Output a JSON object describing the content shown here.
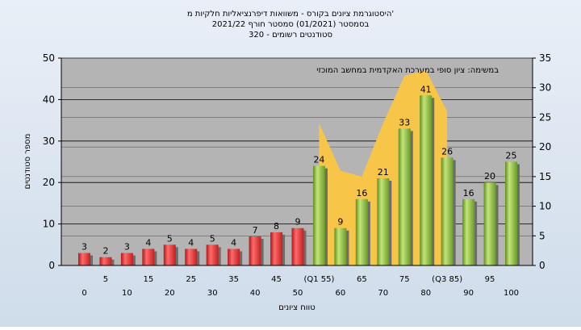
{
  "chart_data": {
    "type": "bar",
    "title_lines": [
      "היסטוגרמת ציונים בקורס - משוואות דיפרנציאליות חלקיות מ'",
      "בסמסטר  (01/2021)  סמסטר חורף  2021/22",
      "סטודנטים רשומים - 320"
    ],
    "annotation": "במשימה: ציון סופי במערכת האקדמית במחשב המוכזי",
    "xlabel": "טווח ציונים",
    "ylabel": "מספר סטודנטים",
    "ylim": [
      0,
      50
    ],
    "yticks": [
      "0",
      "10",
      "20",
      "30",
      "40",
      "50"
    ],
    "y2lim": [
      0,
      35
    ],
    "y2ticks": [
      "0",
      "5",
      "10",
      "15",
      "20",
      "25",
      "30",
      "35"
    ],
    "x_tick_labels_lower": [
      "0",
      "10",
      "20",
      "30",
      "40",
      "50",
      "60",
      "70",
      "80",
      "90",
      "100"
    ],
    "x_tick_labels_upper": [
      "5",
      "15",
      "25",
      "35",
      "45",
      "(Q1 55)",
      "65",
      "75",
      "(Q3 85)",
      "95"
    ],
    "categories": [
      "0",
      "5",
      "10",
      "15",
      "20",
      "25",
      "30",
      "35",
      "40",
      "45",
      "50",
      "55",
      "60",
      "65",
      "70",
      "75",
      "80",
      "85",
      "90",
      "95",
      "100"
    ],
    "values": [
      3,
      2,
      3,
      4,
      5,
      4,
      5,
      4,
      7,
      8,
      9,
      24,
      9,
      16,
      21,
      33,
      41,
      26,
      16,
      20,
      25
    ],
    "bar_colors": [
      "#e03030",
      "#e03030",
      "#e03030",
      "#e03030",
      "#e03030",
      "#e03030",
      "#e03030",
      "#e03030",
      "#e03030",
      "#e03030",
      "#e03030",
      "#86bb3a",
      "#86bb3a",
      "#86bb3a",
      "#86bb3a",
      "#86bb3a",
      "#86bb3a",
      "#86bb3a",
      "#86bb3a",
      "#86bb3a",
      "#86bb3a"
    ],
    "area_series": {
      "start_index": 11,
      "end_index": 17,
      "y2_values": [
        24,
        16,
        15,
        24,
        32,
        33,
        26
      ],
      "color": "#f7c548"
    },
    "plot_background": "#b4b4b4",
    "page_background": "#d9e3ef",
    "grid": true
  }
}
